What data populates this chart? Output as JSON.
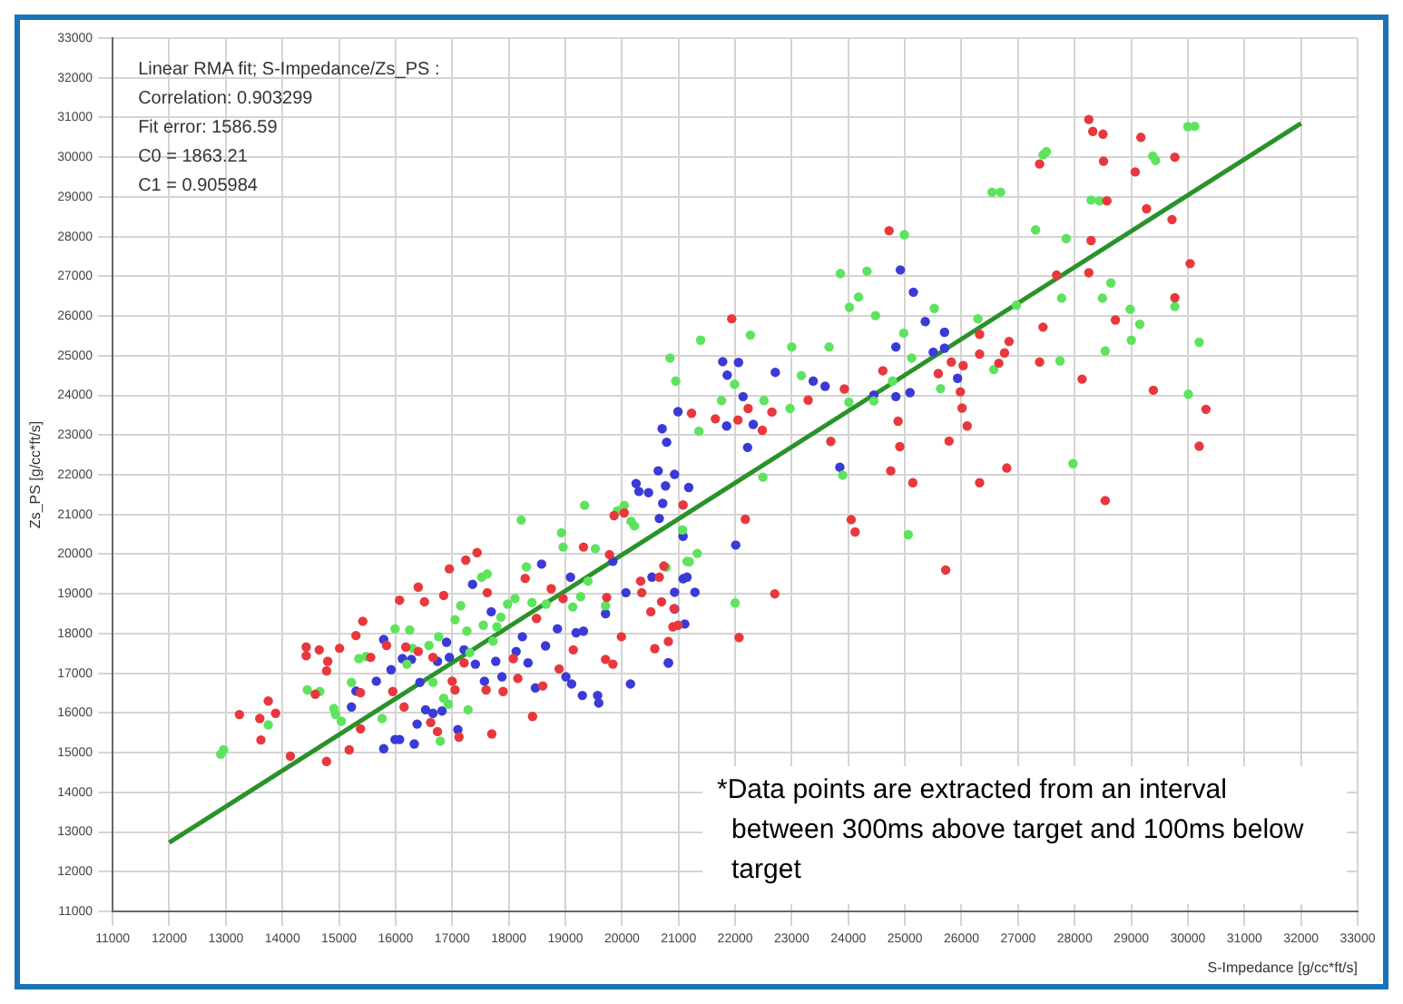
{
  "chart_data": {
    "type": "scatter",
    "xlabel": "S-Impedance [g/cc*ft/s]",
    "ylabel": "Zs_PS [g/cc*ft/s]",
    "annotations": [
      "Linear RMA fit; S-Impedance/Zs_PS :",
      "Correlation: 0.903299",
      "Fit error: 1586.59",
      "C0 = 1863.21",
      "C1 = 0.905984",
      "*Data points are extracted from an interval between 300ms above target and 100ms below target"
    ],
    "xlim": [
      11000,
      33000
    ],
    "ylim": [
      11000,
      33000
    ],
    "xticks": [
      11000,
      12000,
      13000,
      14000,
      15000,
      16000,
      17000,
      18000,
      19000,
      20000,
      21000,
      22000,
      23000,
      24000,
      25000,
      26000,
      27000,
      28000,
      29000,
      30000,
      31000,
      32000,
      33000
    ],
    "yticks": [
      11000,
      12000,
      13000,
      14000,
      15000,
      16000,
      17000,
      18000,
      19000,
      20000,
      21000,
      22000,
      23000,
      24000,
      25000,
      26000,
      27000,
      28000,
      29000,
      30000,
      31000,
      32000,
      33000
    ],
    "grid": true,
    "legend": false,
    "marker": "circle",
    "series": [
      {
        "color": "#e8383d",
        "x": [
          28250,
          28320,
          28500,
          29170,
          29770,
          27380,
          28510,
          29070,
          28570,
          29270,
          29720,
          24720,
          28290,
          30040,
          27680,
          28250,
          29770,
          27440,
          28720,
          21940,
          26840,
          26760,
          26660,
          26320,
          26320,
          26030,
          25820,
          25590,
          24610,
          25980,
          23930,
          23290,
          22650,
          22230,
          22050,
          22480,
          21650,
          21230,
          26010,
          24880,
          26100,
          25780,
          24910,
          23690,
          27380,
          28130,
          29390,
          30320,
          30200,
          24750,
          25140,
          26320,
          26800,
          28540,
          21080,
          22180,
          24050,
          24120,
          25720,
          22700,
          22070,
          20820,
          20900,
          20920,
          20700,
          20740,
          13240,
          13600,
          13620,
          13750,
          13880,
          14140,
          14420,
          14420,
          14650,
          14580,
          14800,
          14780,
          14780,
          15010,
          15180,
          15300,
          15420,
          15380,
          15380,
          15560,
          15840,
          16070,
          16180,
          16150,
          15950,
          16400,
          16400,
          16510,
          16620,
          16740,
          16660,
          16850,
          16950,
          17000,
          17050,
          17120,
          17210,
          17240,
          17440,
          17620,
          17700,
          17600,
          17900,
          18080,
          18290,
          18160,
          18420,
          18490,
          18600,
          18750,
          18890,
          18960,
          19140,
          19320,
          19730,
          19710,
          19840,
          19780,
          19860,
          20040,
          19990,
          20330,
          20350,
          20510,
          20580,
          20660,
          20990
        ],
        "values": [
          30950,
          30650,
          30580,
          30500,
          30000,
          29830,
          29900,
          29630,
          28900,
          28700,
          28430,
          28150,
          27900,
          27320,
          27030,
          27090,
          26460,
          25720,
          25900,
          25930,
          25360,
          25070,
          24810,
          25540,
          25040,
          24750,
          24840,
          24550,
          24620,
          24090,
          24160,
          23880,
          23580,
          23670,
          23380,
          23120,
          23410,
          23550,
          23680,
          23350,
          23230,
          22850,
          22710,
          22840,
          24840,
          24410,
          24130,
          23650,
          22720,
          22100,
          21800,
          21800,
          22170,
          21350,
          21240,
          20880,
          20870,
          20560,
          19600,
          19000,
          17900,
          17800,
          18170,
          18630,
          18800,
          19700,
          15960,
          15860,
          15320,
          16300,
          15990,
          14910,
          17660,
          17440,
          17590,
          16470,
          17300,
          17060,
          14780,
          17630,
          15070,
          17950,
          18310,
          16510,
          15600,
          17400,
          17700,
          18840,
          17660,
          16150,
          16540,
          19170,
          17550,
          18800,
          15760,
          15530,
          17400,
          18960,
          19630,
          16800,
          16580,
          15390,
          17260,
          19850,
          20040,
          19030,
          15470,
          16580,
          16540,
          17370,
          19390,
          16870,
          15910,
          18380,
          16680,
          19130,
          17110,
          18880,
          17590,
          20180,
          18910,
          17350,
          17230,
          19990,
          20970,
          21040,
          17920,
          19320,
          19030,
          18550,
          17620,
          19420,
          18210
        ]
      },
      {
        "color": "#5ee35e",
        "x": [
          30000,
          30120,
          27500,
          27440,
          29380,
          29430,
          26540,
          26690,
          28290,
          27310,
          27850,
          24990,
          23860,
          24330,
          24180,
          24020,
          24480,
          25520,
          26970,
          27770,
          28640,
          28490,
          28980,
          29150,
          29770,
          29000,
          30200,
          28540,
          27740,
          26570,
          26290,
          24980,
          25120,
          24780,
          25630,
          22270,
          21390,
          20850,
          23000,
          23660,
          21990,
          23170,
          20950,
          24010,
          24450,
          22510,
          22970,
          21760,
          21360,
          27970,
          30010,
          28440,
          23900,
          22490,
          25060,
          22000,
          21330,
          21190,
          21070,
          20780,
          12910,
          12960,
          13750,
          14440,
          14660,
          14910,
          14940,
          15040,
          15220,
          15350,
          15480,
          15760,
          15990,
          16250,
          16200,
          16300,
          16590,
          16660,
          16760,
          16790,
          16850,
          16930,
          17050,
          17150,
          17260,
          17310,
          17280,
          17520,
          17620,
          17550,
          17720,
          17790,
          17860,
          17980,
          18110,
          18220,
          18310,
          18410,
          18660,
          18930,
          18960,
          19130,
          19270,
          19340,
          19400,
          19530,
          19710,
          19920,
          20040,
          20160,
          20220,
          21150
        ],
        "values": [
          30770,
          30780,
          30140,
          30060,
          30030,
          29920,
          29120,
          29120,
          28920,
          28170,
          27950,
          28050,
          27070,
          27130,
          26480,
          26220,
          26010,
          26190,
          26270,
          26450,
          26830,
          26450,
          26170,
          25790,
          26240,
          25390,
          25340,
          25120,
          24870,
          24650,
          25930,
          25570,
          24940,
          24360,
          24170,
          25520,
          25390,
          24940,
          25220,
          25220,
          24280,
          24500,
          24360,
          23830,
          23860,
          23870,
          23670,
          23870,
          23100,
          22280,
          24030,
          28900,
          21990,
          21940,
          20490,
          18770,
          20020,
          19810,
          20610,
          19670,
          14960,
          15070,
          15700,
          16580,
          16540,
          16110,
          15960,
          15790,
          16770,
          17370,
          17420,
          15860,
          18120,
          18090,
          17230,
          17630,
          17700,
          16770,
          17920,
          15290,
          16370,
          16220,
          18350,
          18700,
          18060,
          17520,
          16080,
          19420,
          19500,
          18210,
          17810,
          18170,
          18410,
          18740,
          18880,
          20860,
          19680,
          18780,
          18740,
          20540,
          20180,
          18670,
          18930,
          21230,
          19320,
          20140,
          18700,
          21090,
          21230,
          20830,
          20710,
          19820
        ]
      },
      {
        "color": "#3a3ad6",
        "x": [
          15220,
          15300,
          15660,
          15790,
          15920,
          15790,
          15990,
          16070,
          16120,
          16280,
          16330,
          16380,
          16430,
          16530,
          16660,
          16740,
          16820,
          16900,
          16950,
          17100,
          17210,
          17360,
          17410,
          17570,
          17690,
          17770,
          17880,
          18130,
          18240,
          18340,
          18470,
          18580,
          18650,
          18860,
          19010,
          19090,
          19190,
          19110,
          19300,
          19320,
          19570,
          19590,
          19710,
          19840,
          20070,
          20150,
          20300,
          20470,
          20530,
          20660,
          20820,
          20770,
          21150,
          24920,
          25150,
          25360,
          25700,
          25700,
          25500,
          24840,
          25930,
          24450,
          24840,
          25090,
          23590,
          23380,
          22710,
          21860,
          21780,
          22060,
          22140,
          22320,
          21850,
          20990,
          20710,
          20790,
          22220,
          20640,
          23850,
          20250,
          21180,
          20930,
          20720,
          21080,
          22010,
          21080,
          21290,
          20930,
          20930,
          21110,
          20820
        ],
        "values": [
          16150,
          16550,
          16800,
          17850,
          17090,
          15100,
          15330,
          15330,
          17370,
          17350,
          15220,
          15720,
          16770,
          16080,
          15990,
          17300,
          16050,
          17780,
          17400,
          15580,
          17590,
          19240,
          17230,
          16800,
          18550,
          17300,
          16910,
          17550,
          17920,
          17260,
          16630,
          19750,
          17690,
          18120,
          16910,
          19420,
          18020,
          16730,
          16440,
          18060,
          16440,
          16250,
          18500,
          19820,
          19030,
          16730,
          21580,
          21550,
          19420,
          20900,
          17260,
          21720,
          19420,
          27160,
          26600,
          25860,
          25590,
          25190,
          25090,
          25220,
          24430,
          24010,
          23970,
          24070,
          24230,
          24360,
          24580,
          24510,
          24850,
          24830,
          23970,
          23270,
          23230,
          23590,
          23160,
          22820,
          22690,
          22100,
          22190,
          21780,
          21680,
          22010,
          21280,
          20450,
          20230,
          19380,
          19040,
          19040,
          18620,
          18240,
          17260
        ]
      },
      {
        "type": "line",
        "color": "#2a922a",
        "marker": "none",
        "x": [
          12000,
          32000
        ],
        "values": [
          12735,
          30855
        ]
      }
    ]
  }
}
